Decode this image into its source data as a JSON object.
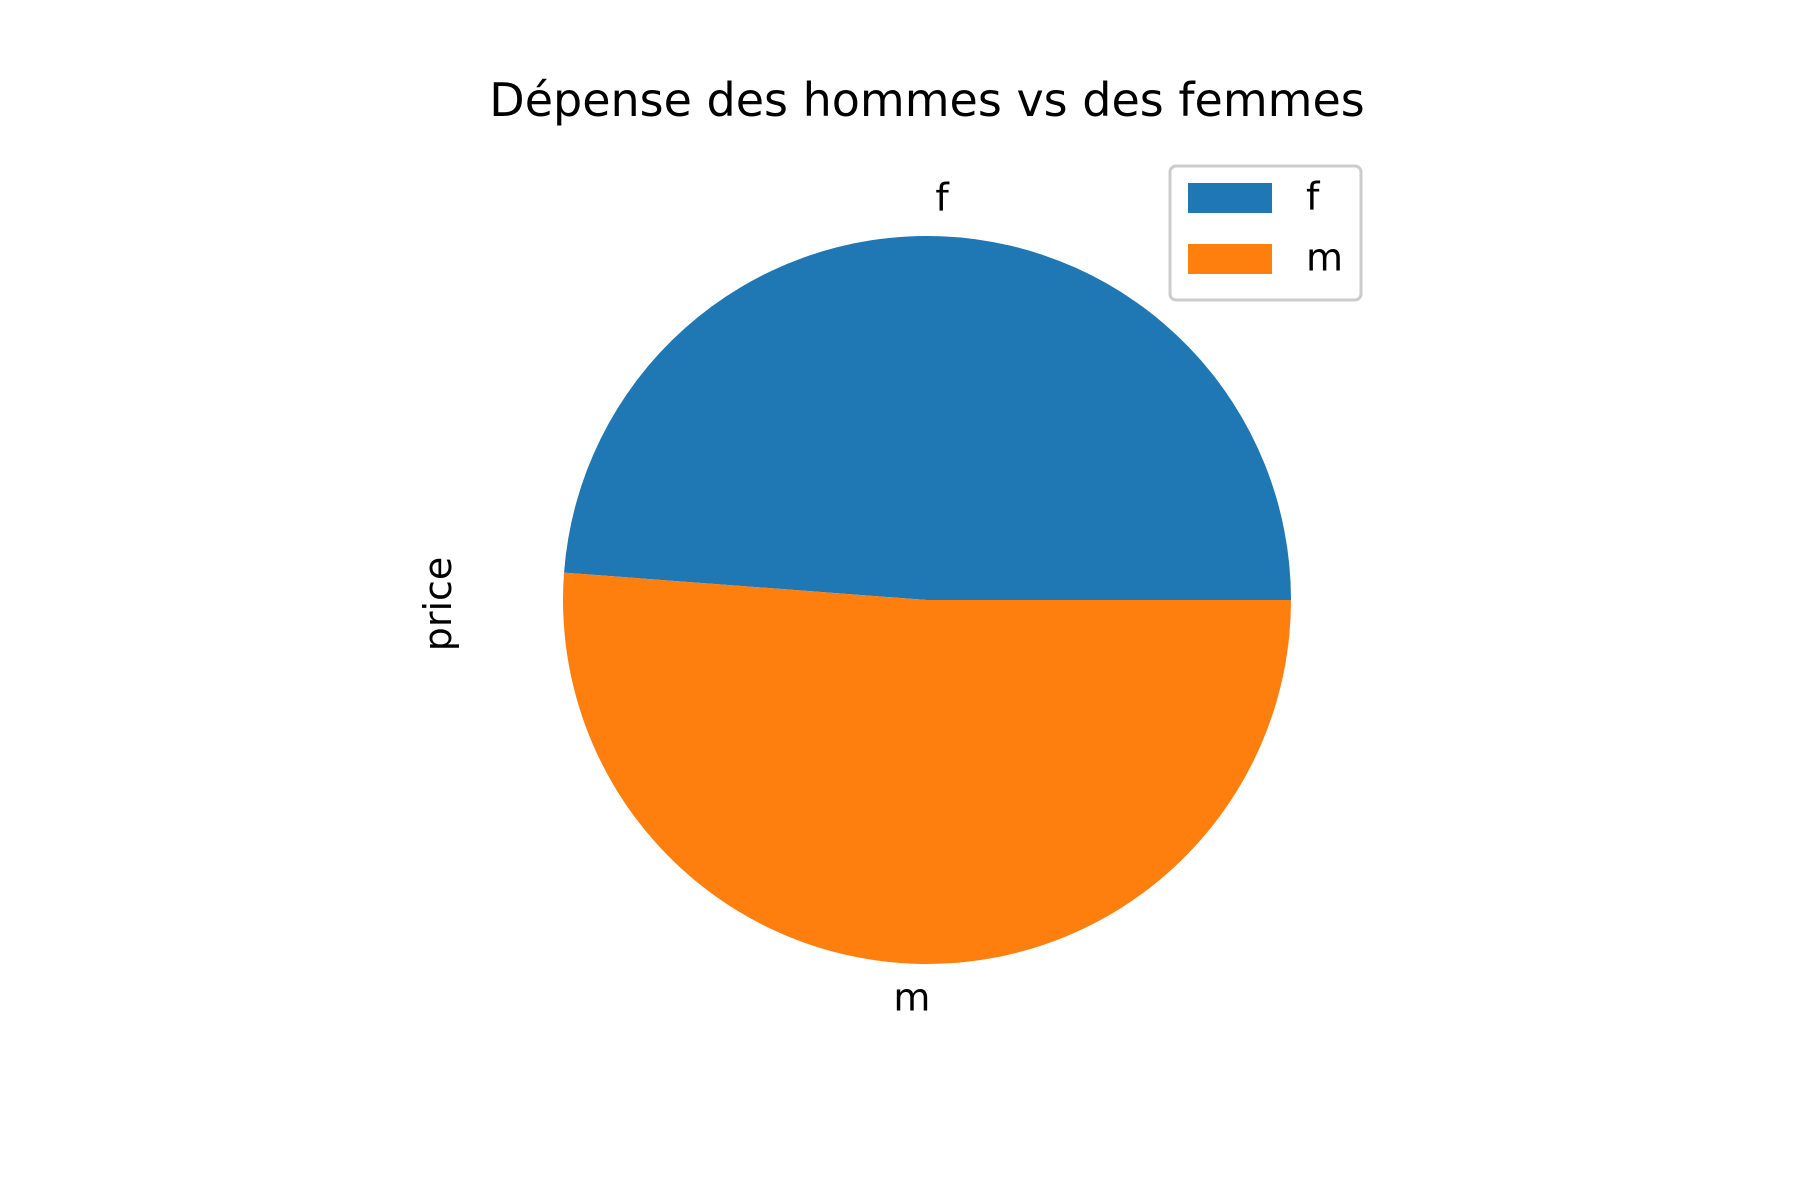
{
  "chart_data": {
    "type": "pie",
    "title": "Dépense des hommes vs des femmes",
    "ylabel": "price",
    "xlabel": "",
    "categories": [
      "f",
      "m"
    ],
    "values": [
      48.8,
      51.2
    ],
    "colors": [
      "#1f77b4",
      "#ff7f0e"
    ],
    "start_angle_deg": 0,
    "direction": "counterclockwise",
    "legend": {
      "placement": "upper-right",
      "entries": [
        "f",
        "m"
      ]
    },
    "grid": false
  }
}
